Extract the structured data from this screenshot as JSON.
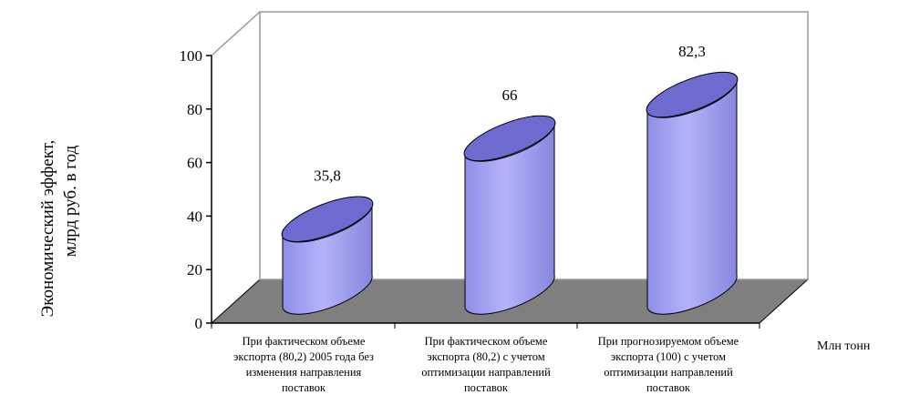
{
  "chart_data": {
    "type": "bar",
    "categories": [
      [
        "При фактическом объеме",
        "экспорта (80,2) 2005 года без",
        "изменения направления",
        "поставок"
      ],
      [
        "При фактическом объеме",
        "экспорта (80,2) с учетом",
        "оптимизации направлений",
        "поставок"
      ],
      [
        "При прогнозируемом объеме",
        "экспорта (100) с учетом",
        "оптимизации направлений",
        "поставок"
      ]
    ],
    "values": [
      35.8,
      66,
      82.3
    ],
    "value_labels": [
      "35,8",
      "66",
      "82,3"
    ],
    "ylabel_lines": [
      "Экономический эффект,",
      "млрд руб. в год"
    ],
    "xlabel": "Млн тонн",
    "ylim": [
      0,
      100
    ],
    "yticks": [
      0,
      20,
      40,
      60,
      80,
      100
    ],
    "colors": {
      "bar_face": "#9d9cf0",
      "bar_top": "#6d6bd0",
      "floor": "#7f7f7f",
      "wall_line": "#999999"
    }
  }
}
